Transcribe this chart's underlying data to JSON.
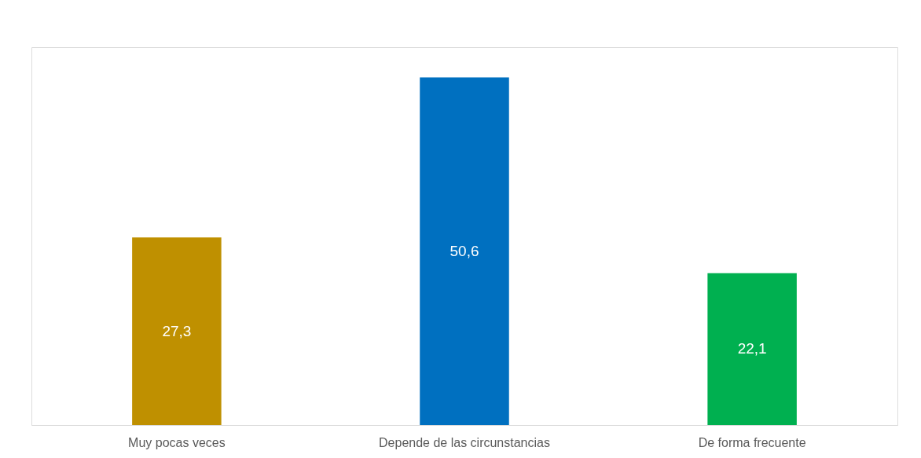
{
  "chart_data": {
    "type": "bar",
    "categories": [
      "Muy pocas veces",
      "Depende de las circunstancias",
      "De forma frecuente"
    ],
    "values": [
      27.3,
      50.6,
      22.1
    ],
    "colors": [
      "#bf9000",
      "#0070c0",
      "#00b050"
    ],
    "value_labels": [
      "27,3",
      "50,6",
      "22,1"
    ],
    "grid": false,
    "legend": false
  }
}
